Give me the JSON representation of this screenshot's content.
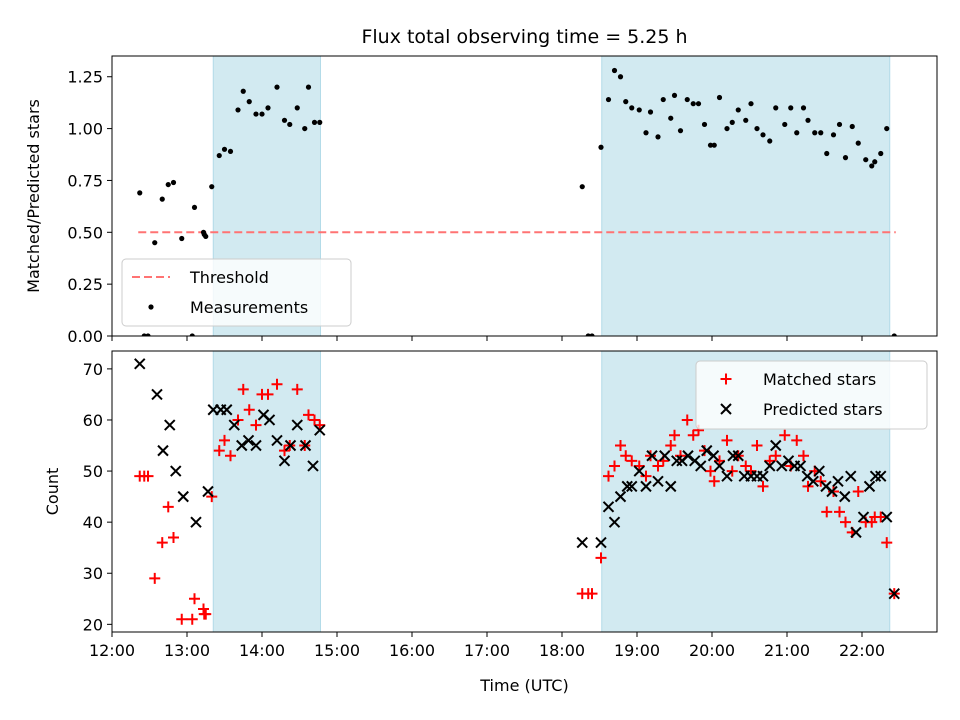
{
  "chart_data": [
    {
      "type": "scatter",
      "title": "Flux total observing time = 5.25 h",
      "xlabel": "",
      "ylabel": "Matched/Predicted stars",
      "xlim": [
        12.0,
        23.0
      ],
      "ylim": [
        0.0,
        1.35
      ],
      "yticks": [
        0.0,
        0.25,
        0.5,
        0.75,
        1.0,
        1.25
      ],
      "ytick_labels": [
        "0.00",
        "0.25",
        "0.50",
        "0.75",
        "1.00",
        "1.25"
      ],
      "shaded_intervals": [
        [
          13.35,
          14.78
        ],
        [
          18.53,
          22.37
        ]
      ],
      "shade_color": "#add8e6",
      "grid": false,
      "legend_position": "lower-left",
      "threshold": {
        "name": "Threshold",
        "y": 0.5,
        "x_range": [
          12.35,
          22.45
        ],
        "color": "#ff7373",
        "style": "dashed"
      },
      "series": [
        {
          "name": "Measurements",
          "marker": "dot",
          "color": "#000000",
          "x": [
            12.37,
            12.43,
            12.48,
            12.57,
            12.67,
            12.75,
            12.82,
            12.93,
            13.07,
            13.1,
            13.22,
            13.23,
            13.25,
            13.33,
            13.43,
            13.5,
            13.58,
            13.68,
            13.75,
            13.83,
            13.92,
            14.0,
            14.08,
            14.2,
            14.3,
            14.37,
            14.47,
            14.57,
            14.62,
            14.7,
            14.77,
            18.27,
            18.35,
            18.4,
            18.52,
            18.62,
            18.7,
            18.78,
            18.85,
            18.93,
            19.03,
            19.12,
            19.18,
            19.28,
            19.35,
            19.45,
            19.5,
            19.58,
            19.67,
            19.75,
            19.82,
            19.9,
            19.98,
            20.03,
            20.1,
            20.2,
            20.27,
            20.35,
            20.45,
            20.52,
            20.6,
            20.68,
            20.77,
            20.85,
            20.97,
            21.05,
            21.13,
            21.22,
            21.28,
            21.37,
            21.45,
            21.53,
            21.62,
            21.7,
            21.78,
            21.87,
            21.95,
            22.05,
            22.13,
            22.17,
            22.25,
            22.33,
            22.43
          ],
          "y": [
            0.69,
            0.0,
            0.0,
            0.45,
            0.66,
            0.73,
            0.74,
            0.47,
            0.0,
            0.62,
            0.5,
            0.49,
            0.48,
            0.72,
            0.87,
            0.9,
            0.89,
            1.09,
            1.18,
            1.13,
            1.07,
            1.07,
            1.1,
            1.2,
            1.04,
            1.02,
            1.1,
            1.0,
            1.2,
            1.03,
            1.03,
            0.72,
            0.0,
            0.0,
            0.91,
            1.14,
            1.28,
            1.25,
            1.13,
            1.1,
            1.09,
            0.98,
            1.08,
            0.96,
            1.14,
            1.05,
            1.16,
            0.99,
            1.14,
            1.12,
            1.12,
            1.02,
            0.92,
            0.92,
            1.15,
            1.0,
            1.03,
            1.09,
            1.04,
            1.12,
            1.0,
            0.97,
            0.94,
            1.1,
            1.02,
            1.1,
            0.98,
            1.1,
            1.04,
            0.98,
            0.98,
            0.88,
            0.97,
            1.02,
            0.86,
            1.01,
            0.93,
            0.85,
            0.82,
            0.84,
            0.88,
            1.0,
            0.0
          ]
        }
      ]
    },
    {
      "type": "scatter",
      "title": "",
      "xlabel": "Time (UTC)",
      "ylabel": "Count",
      "xlim": [
        12.0,
        23.0
      ],
      "ylim": [
        18.5,
        73.5
      ],
      "yticks": [
        20,
        30,
        40,
        50,
        60,
        70
      ],
      "ytick_labels": [
        "20",
        "30",
        "40",
        "50",
        "60",
        "70"
      ],
      "xticks": [
        12,
        13,
        14,
        15,
        16,
        17,
        18,
        19,
        20,
        21,
        22
      ],
      "xtick_labels": [
        "12:00",
        "13:00",
        "14:00",
        "15:00",
        "16:00",
        "17:00",
        "18:00",
        "19:00",
        "20:00",
        "21:00",
        "22:00"
      ],
      "shaded_intervals": [
        [
          13.35,
          14.78
        ],
        [
          18.53,
          22.37
        ]
      ],
      "shade_color": "#add8e6",
      "grid": false,
      "legend_position": "upper-right",
      "series": [
        {
          "name": "Matched stars",
          "marker": "plus",
          "color": "#ff0000",
          "x": [
            12.37,
            12.43,
            12.48,
            12.57,
            12.67,
            12.75,
            12.82,
            12.93,
            13.07,
            13.1,
            13.22,
            13.23,
            13.25,
            13.33,
            13.43,
            13.5,
            13.58,
            13.68,
            13.75,
            13.83,
            13.92,
            14.0,
            14.08,
            14.2,
            14.3,
            14.37,
            14.47,
            14.57,
            14.62,
            14.7,
            14.77,
            18.27,
            18.35,
            18.4,
            18.52,
            18.62,
            18.7,
            18.78,
            18.85,
            18.93,
            19.03,
            19.12,
            19.18,
            19.28,
            19.35,
            19.45,
            19.5,
            19.58,
            19.67,
            19.75,
            19.82,
            19.9,
            19.98,
            20.03,
            20.1,
            20.2,
            20.27,
            20.35,
            20.45,
            20.52,
            20.6,
            20.68,
            20.77,
            20.85,
            20.97,
            21.05,
            21.13,
            21.22,
            21.28,
            21.37,
            21.45,
            21.53,
            21.62,
            21.7,
            21.78,
            21.87,
            21.95,
            22.05,
            22.13,
            22.17,
            22.25,
            22.33,
            22.43
          ],
          "y": [
            49,
            49,
            49,
            29,
            36,
            43,
            37,
            21,
            21,
            25,
            23,
            22,
            22,
            45,
            54,
            56,
            53,
            60,
            66,
            62,
            59,
            65,
            65,
            67,
            54,
            55,
            66,
            55,
            61,
            60,
            59,
            26,
            26,
            26,
            33,
            49,
            51,
            55,
            53,
            52,
            51,
            49,
            53,
            51,
            52,
            55,
            57,
            53,
            60,
            57,
            58,
            54,
            50,
            48,
            52,
            56,
            50,
            53,
            51,
            50,
            55,
            47,
            52,
            53,
            57,
            51,
            56,
            53,
            47,
            50,
            48,
            42,
            46,
            42,
            40,
            38,
            46,
            40,
            40,
            41,
            41,
            36,
            26
          ]
        },
        {
          "name": "Predicted stars",
          "marker": "x",
          "color": "#000000",
          "x": [
            12.37,
            12.6,
            12.68,
            12.77,
            12.85,
            12.95,
            13.12,
            13.28,
            13.35,
            13.45,
            13.53,
            13.63,
            13.73,
            13.82,
            13.92,
            14.02,
            14.1,
            14.2,
            14.3,
            14.38,
            14.47,
            14.58,
            14.68,
            14.77,
            18.27,
            18.52,
            18.62,
            18.7,
            18.78,
            18.87,
            18.93,
            19.03,
            19.12,
            19.2,
            19.28,
            19.37,
            19.45,
            19.53,
            19.6,
            19.68,
            19.77,
            19.85,
            19.93,
            20.02,
            20.1,
            20.2,
            20.28,
            20.35,
            20.43,
            20.52,
            20.6,
            20.68,
            20.77,
            20.85,
            20.93,
            21.02,
            21.1,
            21.18,
            21.27,
            21.35,
            21.43,
            21.52,
            21.6,
            21.68,
            21.77,
            21.85,
            21.92,
            22.02,
            22.1,
            22.18,
            22.25,
            22.33,
            22.43
          ],
          "y": [
            71,
            65,
            54,
            59,
            50,
            45,
            40,
            46,
            62,
            62,
            62,
            59,
            55,
            56,
            55,
            61,
            60,
            56,
            52,
            55,
            59,
            55,
            51,
            58,
            36,
            36,
            43,
            40,
            45,
            47,
            47,
            50,
            47,
            53,
            48,
            53,
            47,
            52,
            52,
            53,
            52,
            51,
            54,
            53,
            51,
            49,
            53,
            53,
            49,
            49,
            49,
            49,
            51,
            55,
            51,
            52,
            51,
            51,
            49,
            48,
            50,
            47,
            46,
            48,
            45,
            49,
            38,
            41,
            47,
            49,
            49,
            41,
            26
          ]
        }
      ]
    }
  ]
}
